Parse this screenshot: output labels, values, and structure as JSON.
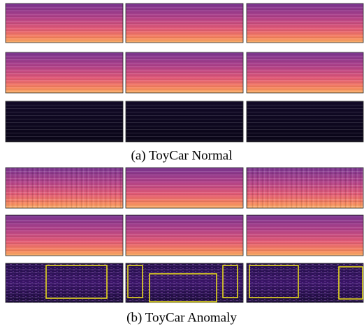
{
  "captions": {
    "normal": "(a) ToyCar Normal",
    "anomaly": "(b) ToyCar Anomaly"
  }
}
